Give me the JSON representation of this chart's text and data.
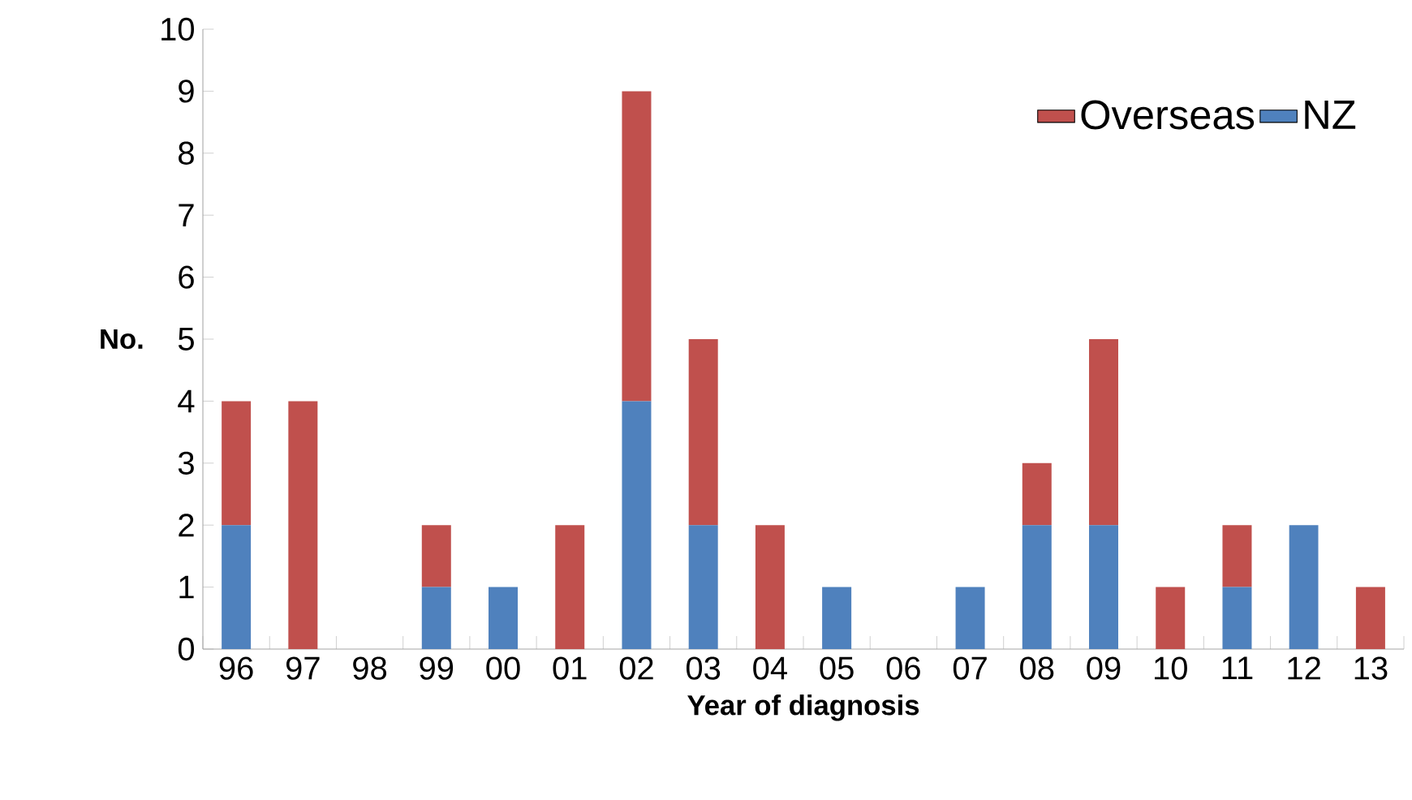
{
  "chart_data": {
    "type": "bar",
    "stacked": true,
    "xlabel": "Year of diagnosis",
    "ylabel": "No.",
    "categories": [
      "96",
      "97",
      "98",
      "99",
      "00",
      "01",
      "02",
      "03",
      "04",
      "05",
      "06",
      "07",
      "08",
      "09",
      "10",
      "11",
      "12",
      "13"
    ],
    "series": [
      {
        "name": "NZ",
        "color": "#4f81bd",
        "values": [
          2,
          0,
          0,
          1,
          1,
          0,
          4,
          2,
          0,
          1,
          0,
          1,
          2,
          2,
          0,
          1,
          2,
          0
        ]
      },
      {
        "name": "Overseas",
        "color": "#c0504d",
        "values": [
          2,
          4,
          0,
          1,
          0,
          2,
          5,
          3,
          2,
          0,
          0,
          0,
          1,
          3,
          1,
          1,
          0,
          1
        ]
      }
    ],
    "ylim": [
      0,
      10
    ],
    "yticks": [
      0,
      1,
      2,
      3,
      4,
      5,
      6,
      7,
      8,
      9,
      10
    ],
    "legend": "top right",
    "grid": false
  }
}
